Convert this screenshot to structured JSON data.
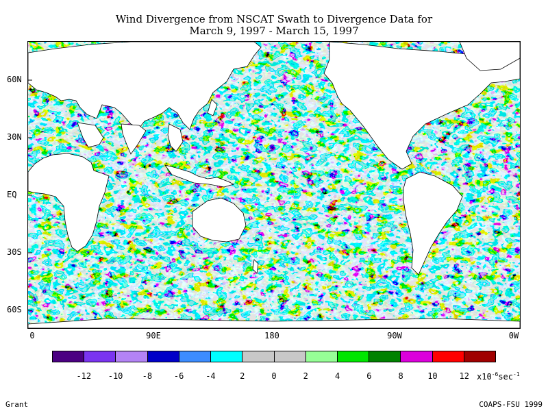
{
  "title": {
    "line1": "Wind Divergence from NSCAT Swath to Divergence Data for",
    "line2": "March 9, 1997 - March 15, 1997"
  },
  "map": {
    "lat_labels": [
      "60N",
      "30N",
      "EQ",
      "30S",
      "60S"
    ],
    "lon_labels": [
      "0",
      "90E",
      "180",
      "90W",
      "0W"
    ],
    "ocean_base_color": "#c8c8c8",
    "land_color": "#ffffff"
  },
  "colorbar": {
    "colors": [
      "#4b0082",
      "#7a34f0",
      "#b383f5",
      "#0000c8",
      "#3c8cff",
      "#00ffff",
      "#c8c8c8",
      "#c8c8c8",
      "#96ff96",
      "#00e600",
      "#008200",
      "#dc00dc",
      "#ff0000",
      "#a00000"
    ],
    "labels": [
      "-12",
      "-10",
      "-8",
      "-6",
      "-4",
      "2",
      "0",
      "2",
      "4",
      "6",
      "8",
      "10",
      "12"
    ],
    "units_prefix": "x10",
    "units_exp": "-6",
    "units_mid": "sec",
    "units_exp2": "-1"
  },
  "credits": {
    "left": "Grant",
    "right": "COAPS-FSU 1999"
  }
}
